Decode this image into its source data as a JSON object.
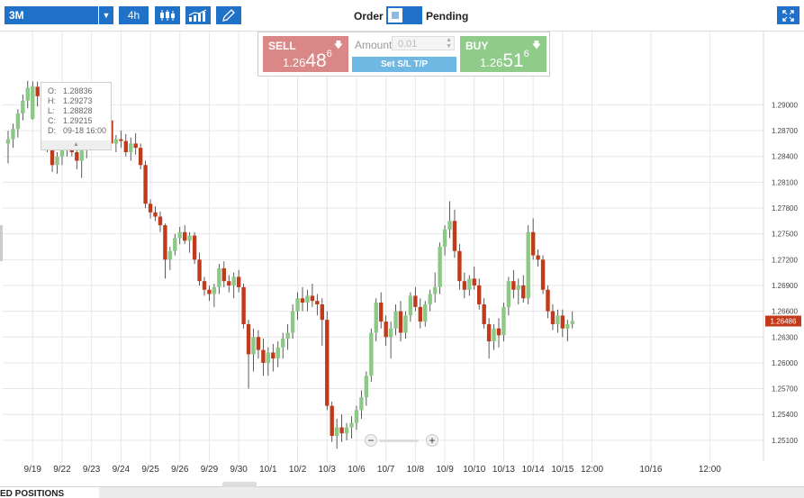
{
  "toolbar": {
    "symbol": "3M",
    "timeframe": "4h",
    "order_label": "Order",
    "pending_label": "Pending"
  },
  "trade": {
    "sell_label": "SELL",
    "sell_price_prefix": "1.26",
    "sell_price_big": "48",
    "sell_price_sup": "6",
    "buy_label": "BUY",
    "buy_price_prefix": "1.26",
    "buy_price_big": "51",
    "buy_price_sup": "6",
    "amount_label": "Amount",
    "amount_placeholder": "0.01",
    "set_sl_tp": "Set S/L T/P"
  },
  "ohlc": {
    "o_label": "O:",
    "o_value": "1.28836",
    "h_label": "H:",
    "h_value": "1.29273",
    "l_label": "L:",
    "l_value": "1.28828",
    "c_label": "C:",
    "c_value": "1.29215",
    "d_label": "D:",
    "d_value": "09-18 16:00"
  },
  "bottom": {
    "positions_tab": "ED POSITIONS"
  },
  "colors": {
    "accent": "#1f72c8",
    "sell": "#d98787",
    "buy": "#8fcc8a",
    "bull_candle": "#8cc987",
    "bear_candle": "#c23a1c",
    "current_price": "#c23a1c"
  },
  "chart_data": {
    "type": "candlestick",
    "current_price_label": "1.26486",
    "current_price": 1.26486,
    "y_ticks": [
      "1.29000",
      "1.28700",
      "1.28400",
      "1.28100",
      "1.27800",
      "1.27500",
      "1.27200",
      "1.26900",
      "1.26600",
      "1.26300",
      "1.26000",
      "1.25700",
      "1.25400",
      "1.25100"
    ],
    "y_range": [
      1.2491,
      1.2935
    ],
    "x_labels": [
      {
        "label": "9/19",
        "i": 5
      },
      {
        "label": "9/22",
        "i": 11
      },
      {
        "label": "9/23",
        "i": 17
      },
      {
        "label": "9/24",
        "i": 23
      },
      {
        "label": "9/25",
        "i": 29
      },
      {
        "label": "9/26",
        "i": 35
      },
      {
        "label": "9/29",
        "i": 41
      },
      {
        "label": "9/30",
        "i": 47
      },
      {
        "label": "10/1",
        "i": 53
      },
      {
        "label": "10/2",
        "i": 59
      },
      {
        "label": "10/3",
        "i": 65
      },
      {
        "label": "10/6",
        "i": 71
      },
      {
        "label": "10/7",
        "i": 77
      },
      {
        "label": "10/8",
        "i": 83
      },
      {
        "label": "10/9",
        "i": 89
      },
      {
        "label": "10/10",
        "i": 95
      },
      {
        "label": "10/13",
        "i": 101
      },
      {
        "label": "10/14",
        "i": 107
      },
      {
        "label": "10/15",
        "i": 113
      },
      {
        "label": "12:00",
        "i": 119
      },
      {
        "label": "10/16",
        "i": 131
      },
      {
        "label": "12:00",
        "i": 143
      }
    ],
    "grid": true,
    "candles": [
      [
        1.2855,
        1.287,
        1.2832,
        1.286
      ],
      [
        1.286,
        1.2878,
        1.285,
        1.2872
      ],
      [
        1.2872,
        1.2895,
        1.2862,
        1.289
      ],
      [
        1.289,
        1.2912,
        1.2882,
        1.2905
      ],
      [
        1.2905,
        1.2928,
        1.2896,
        1.292
      ],
      [
        1.28836,
        1.29273,
        1.28828,
        1.29215
      ],
      [
        1.2921,
        1.2927,
        1.2898,
        1.291
      ],
      [
        1.291,
        1.2918,
        1.288,
        1.2885
      ],
      [
        1.2885,
        1.289,
        1.2845,
        1.285
      ],
      [
        1.285,
        1.286,
        1.2822,
        1.283
      ],
      [
        1.283,
        1.2845,
        1.282,
        1.284
      ],
      [
        1.284,
        1.2858,
        1.283,
        1.2852
      ],
      [
        1.2852,
        1.287,
        1.284,
        1.2862
      ],
      [
        1.2862,
        1.2872,
        1.284,
        1.2845
      ],
      [
        1.2845,
        1.2855,
        1.2825,
        1.2835
      ],
      [
        1.2835,
        1.2858,
        1.2815,
        1.285
      ],
      [
        1.285,
        1.2868,
        1.2838,
        1.286
      ],
      [
        1.286,
        1.288,
        1.285,
        1.2875
      ],
      [
        1.2875,
        1.2885,
        1.2858,
        1.2865
      ],
      [
        1.2865,
        1.2878,
        1.285,
        1.287
      ],
      [
        1.287,
        1.2888,
        1.286,
        1.2882
      ],
      [
        1.2882,
        1.289,
        1.285,
        1.2855
      ],
      [
        1.2855,
        1.2865,
        1.2845,
        1.286
      ],
      [
        1.286,
        1.287,
        1.285,
        1.2858
      ],
      [
        1.2858,
        1.2866,
        1.284,
        1.2845
      ],
      [
        1.2845,
        1.2862,
        1.2835,
        1.2855
      ],
      [
        1.2855,
        1.2867,
        1.2842,
        1.285
      ],
      [
        1.285,
        1.2855,
        1.2825,
        1.283
      ],
      [
        1.283,
        1.2835,
        1.278,
        1.2785
      ],
      [
        1.2785,
        1.279,
        1.2768,
        1.2775
      ],
      [
        1.2775,
        1.2782,
        1.2765,
        1.277
      ],
      [
        1.277,
        1.2776,
        1.2752,
        1.276
      ],
      [
        1.276,
        1.2762,
        1.2698,
        1.272
      ],
      [
        1.272,
        1.2735,
        1.2708,
        1.273
      ],
      [
        1.273,
        1.275,
        1.2725,
        1.2745
      ],
      [
        1.2745,
        1.2758,
        1.2738,
        1.2752
      ],
      [
        1.2752,
        1.276,
        1.2738,
        1.2742
      ],
      [
        1.2742,
        1.2752,
        1.2728,
        1.2748
      ],
      [
        1.2748,
        1.2752,
        1.2715,
        1.272
      ],
      [
        1.272,
        1.2728,
        1.269,
        1.2695
      ],
      [
        1.2695,
        1.27,
        1.2678,
        1.2685
      ],
      [
        1.2685,
        1.269,
        1.2672,
        1.268
      ],
      [
        1.268,
        1.2692,
        1.2665,
        1.2688
      ],
      [
        1.2688,
        1.2715,
        1.268,
        1.271
      ],
      [
        1.271,
        1.2718,
        1.2688,
        1.2695
      ],
      [
        1.2695,
        1.2702,
        1.2682,
        1.269
      ],
      [
        1.269,
        1.2705,
        1.2675,
        1.27
      ],
      [
        1.27,
        1.2708,
        1.2682,
        1.2688
      ],
      [
        1.2688,
        1.2692,
        1.264,
        1.2645
      ],
      [
        1.2645,
        1.265,
        1.257,
        1.261
      ],
      [
        1.261,
        1.264,
        1.259,
        1.263
      ],
      [
        1.263,
        1.2638,
        1.2605,
        1.2615
      ],
      [
        1.2615,
        1.2628,
        1.2585,
        1.26
      ],
      [
        1.26,
        1.2618,
        1.2585,
        1.2612
      ],
      [
        1.2612,
        1.2622,
        1.259,
        1.2605
      ],
      [
        1.2605,
        1.2625,
        1.2595,
        1.2618
      ],
      [
        1.2618,
        1.2635,
        1.2605,
        1.2628
      ],
      [
        1.2628,
        1.2645,
        1.2615,
        1.2635
      ],
      [
        1.2635,
        1.2668,
        1.2628,
        1.266
      ],
      [
        1.266,
        1.2682,
        1.265,
        1.2675
      ],
      [
        1.2675,
        1.2688,
        1.266,
        1.267
      ],
      [
        1.267,
        1.2685,
        1.266,
        1.2678
      ],
      [
        1.2678,
        1.2692,
        1.2665,
        1.2672
      ],
      [
        1.2672,
        1.268,
        1.2655,
        1.2668
      ],
      [
        1.2668,
        1.2675,
        1.262,
        1.265
      ],
      [
        1.265,
        1.266,
        1.2545,
        1.255
      ],
      [
        1.255,
        1.2555,
        1.2508,
        1.2515
      ],
      [
        1.2515,
        1.2535,
        1.25,
        1.2525
      ],
      [
        1.2525,
        1.254,
        1.2508,
        1.2518
      ],
      [
        1.2518,
        1.253,
        1.251,
        1.2525
      ],
      [
        1.2525,
        1.2538,
        1.2512,
        1.253
      ],
      [
        1.253,
        1.255,
        1.2522,
        1.2545
      ],
      [
        1.2545,
        1.2568,
        1.2535,
        1.256
      ],
      [
        1.256,
        1.259,
        1.255,
        1.2585
      ],
      [
        1.2585,
        1.264,
        1.2578,
        1.2635
      ],
      [
        1.2635,
        1.2675,
        1.2625,
        1.267
      ],
      [
        1.267,
        1.2682,
        1.264,
        1.2648
      ],
      [
        1.2648,
        1.2655,
        1.262,
        1.263
      ],
      [
        1.263,
        1.2648,
        1.2605,
        1.264
      ],
      [
        1.264,
        1.2668,
        1.2632,
        1.266
      ],
      [
        1.266,
        1.2672,
        1.2625,
        1.2635
      ],
      [
        1.2635,
        1.266,
        1.2628,
        1.2655
      ],
      [
        1.2655,
        1.2682,
        1.2648,
        1.2678
      ],
      [
        1.2678,
        1.2688,
        1.266,
        1.2665
      ],
      [
        1.2665,
        1.2675,
        1.264,
        1.2648
      ],
      [
        1.2648,
        1.2672,
        1.2642,
        1.2668
      ],
      [
        1.2668,
        1.2685,
        1.266,
        1.268
      ],
      [
        1.268,
        1.2705,
        1.267,
        1.2688
      ],
      [
        1.2688,
        1.274,
        1.268,
        1.2735
      ],
      [
        1.2735,
        1.276,
        1.2725,
        1.2755
      ],
      [
        1.2755,
        1.2788,
        1.2745,
        1.2765
      ],
      [
        1.2765,
        1.2778,
        1.2722,
        1.273
      ],
      [
        1.273,
        1.2738,
        1.2685,
        1.2695
      ],
      [
        1.2695,
        1.2705,
        1.2675,
        1.2685
      ],
      [
        1.2685,
        1.2702,
        1.2678,
        1.2698
      ],
      [
        1.2698,
        1.2712,
        1.2685,
        1.269
      ],
      [
        1.269,
        1.2698,
        1.2662,
        1.2668
      ],
      [
        1.2668,
        1.2675,
        1.264,
        1.2645
      ],
      [
        1.2645,
        1.2652,
        1.2605,
        1.2625
      ],
      [
        1.2625,
        1.2645,
        1.2615,
        1.264
      ],
      [
        1.264,
        1.2652,
        1.2618,
        1.2632
      ],
      [
        1.2632,
        1.267,
        1.2625,
        1.2665
      ],
      [
        1.2665,
        1.27,
        1.2655,
        1.2695
      ],
      [
        1.2695,
        1.2708,
        1.2675,
        1.2685
      ],
      [
        1.2685,
        1.2698,
        1.2668,
        1.269
      ],
      [
        1.269,
        1.2702,
        1.267,
        1.2675
      ],
      [
        1.2675,
        1.276,
        1.2668,
        1.2752
      ],
      [
        1.2752,
        1.2768,
        1.272,
        1.2725
      ],
      [
        1.2725,
        1.2732,
        1.2712,
        1.272
      ],
      [
        1.272,
        1.2725,
        1.268,
        1.2685
      ],
      [
        1.2685,
        1.269,
        1.2652,
        1.266
      ],
      [
        1.266,
        1.2668,
        1.2638,
        1.2645
      ],
      [
        1.2645,
        1.2662,
        1.2635,
        1.2655
      ],
      [
        1.2655,
        1.2662,
        1.263,
        1.264
      ],
      [
        1.264,
        1.265,
        1.2625,
        1.2645
      ],
      [
        1.2645,
        1.266,
        1.264,
        1.26486
      ]
    ]
  }
}
